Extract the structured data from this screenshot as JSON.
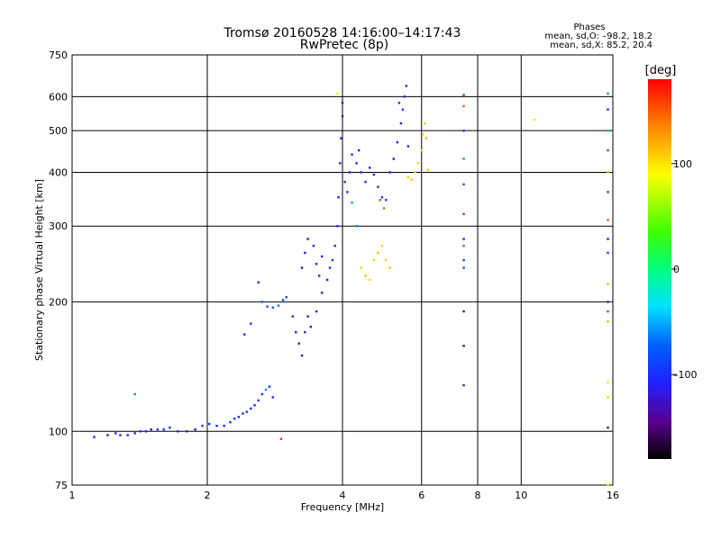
{
  "chart_data": {
    "type": "scatter",
    "title": "Tromsø 20160528 14:16:00–14:17:43",
    "subtitle": "RwPretec (8p)",
    "stats": {
      "heading": "Phases",
      "line_o": "mean, sd,O:  –98.2, 18.2",
      "line_x": "mean, sd,X:   85.2, 20.4"
    },
    "xlabel": "Frequency [MHz]",
    "ylabel": "Stationary phase Virtual Height [km]",
    "x_scale": "log",
    "y_scale": "log",
    "xlim": [
      1,
      16
    ],
    "ylim": [
      75,
      750
    ],
    "xticks": [
      1,
      2,
      4,
      6,
      8,
      10,
      16
    ],
    "xtick_labels": [
      "1",
      "2",
      "4",
      "6",
      "8",
      "10",
      "16"
    ],
    "yticks": [
      75,
      100,
      200,
      300,
      400,
      500,
      600,
      750
    ],
    "ytick_labels": [
      "75",
      "100",
      "200",
      "300",
      "400",
      "500",
      "600",
      "750"
    ],
    "grid": true,
    "colorbar": {
      "label": "[deg]",
      "range": [
        -180,
        180
      ],
      "ticks": [
        -100,
        0,
        100
      ],
      "tick_labels": [
        "–100",
        "0",
        "100"
      ]
    },
    "points": [
      {
        "x": 1.12,
        "y": 97,
        "c": -110
      },
      {
        "x": 1.2,
        "y": 98,
        "c": -115
      },
      {
        "x": 1.25,
        "y": 99,
        "c": -120
      },
      {
        "x": 1.28,
        "y": 98,
        "c": -118
      },
      {
        "x": 1.33,
        "y": 98,
        "c": -112
      },
      {
        "x": 1.38,
        "y": 99,
        "c": -108
      },
      {
        "x": 1.42,
        "y": 100,
        "c": -105
      },
      {
        "x": 1.46,
        "y": 100,
        "c": -110
      },
      {
        "x": 1.5,
        "y": 101,
        "c": -108
      },
      {
        "x": 1.55,
        "y": 101,
        "c": -100
      },
      {
        "x": 1.6,
        "y": 101,
        "c": -95
      },
      {
        "x": 1.65,
        "y": 102,
        "c": -100
      },
      {
        "x": 1.72,
        "y": 100,
        "c": -105
      },
      {
        "x": 1.8,
        "y": 100,
        "c": -110
      },
      {
        "x": 1.88,
        "y": 101,
        "c": -108
      },
      {
        "x": 1.95,
        "y": 103,
        "c": -100
      },
      {
        "x": 2.02,
        "y": 104,
        "c": -95
      },
      {
        "x": 2.1,
        "y": 103,
        "c": -110
      },
      {
        "x": 2.18,
        "y": 103,
        "c": -105
      },
      {
        "x": 2.25,
        "y": 105,
        "c": -100
      },
      {
        "x": 2.3,
        "y": 107,
        "c": -95
      },
      {
        "x": 2.35,
        "y": 108,
        "c": -110
      },
      {
        "x": 2.4,
        "y": 110,
        "c": -100
      },
      {
        "x": 2.45,
        "y": 111,
        "c": -95
      },
      {
        "x": 2.5,
        "y": 113,
        "c": -100
      },
      {
        "x": 2.55,
        "y": 115,
        "c": -105
      },
      {
        "x": 2.6,
        "y": 118,
        "c": -100
      },
      {
        "x": 2.65,
        "y": 122,
        "c": -95
      },
      {
        "x": 2.7,
        "y": 125,
        "c": -60
      },
      {
        "x": 2.75,
        "y": 127,
        "c": -100
      },
      {
        "x": 2.8,
        "y": 120,
        "c": -105
      },
      {
        "x": 1.38,
        "y": 122,
        "c": -60
      },
      {
        "x": 2.92,
        "y": 96,
        "c": 160
      },
      {
        "x": 2.5,
        "y": 178,
        "c": -100
      },
      {
        "x": 2.42,
        "y": 168,
        "c": -110
      },
      {
        "x": 2.6,
        "y": 222,
        "c": -110
      },
      {
        "x": 2.65,
        "y": 200,
        "c": -70
      },
      {
        "x": 2.72,
        "y": 195,
        "c": -80
      },
      {
        "x": 2.8,
        "y": 194,
        "c": -75
      },
      {
        "x": 2.88,
        "y": 196,
        "c": -70
      },
      {
        "x": 2.95,
        "y": 202,
        "c": -80
      },
      {
        "x": 3.0,
        "y": 205,
        "c": -90
      },
      {
        "x": 3.1,
        "y": 185,
        "c": -120
      },
      {
        "x": 3.15,
        "y": 170,
        "c": -125
      },
      {
        "x": 3.2,
        "y": 160,
        "c": -130
      },
      {
        "x": 3.25,
        "y": 150,
        "c": -125
      },
      {
        "x": 3.3,
        "y": 170,
        "c": -120
      },
      {
        "x": 3.35,
        "y": 185,
        "c": -130
      },
      {
        "x": 3.4,
        "y": 175,
        "c": -125
      },
      {
        "x": 3.5,
        "y": 190,
        "c": -120
      },
      {
        "x": 3.6,
        "y": 210,
        "c": -115
      },
      {
        "x": 3.25,
        "y": 240,
        "c": -130
      },
      {
        "x": 3.3,
        "y": 260,
        "c": -125
      },
      {
        "x": 3.35,
        "y": 280,
        "c": -120
      },
      {
        "x": 3.45,
        "y": 270,
        "c": -125
      },
      {
        "x": 3.5,
        "y": 245,
        "c": -130
      },
      {
        "x": 3.55,
        "y": 230,
        "c": -120
      },
      {
        "x": 3.6,
        "y": 255,
        "c": -115
      },
      {
        "x": 3.7,
        "y": 225,
        "c": -110
      },
      {
        "x": 3.75,
        "y": 240,
        "c": -105
      },
      {
        "x": 3.8,
        "y": 250,
        "c": -100
      },
      {
        "x": 3.85,
        "y": 270,
        "c": -110
      },
      {
        "x": 3.9,
        "y": 300,
        "c": -105
      },
      {
        "x": 3.92,
        "y": 350,
        "c": -110
      },
      {
        "x": 3.95,
        "y": 420,
        "c": -115
      },
      {
        "x": 3.97,
        "y": 480,
        "c": -110
      },
      {
        "x": 4.0,
        "y": 540,
        "c": -115
      },
      {
        "x": 4.0,
        "y": 580,
        "c": -120
      },
      {
        "x": 4.05,
        "y": 380,
        "c": -105
      },
      {
        "x": 4.1,
        "y": 360,
        "c": -100
      },
      {
        "x": 4.15,
        "y": 400,
        "c": -110
      },
      {
        "x": 4.2,
        "y": 440,
        "c": -105
      },
      {
        "x": 4.3,
        "y": 420,
        "c": -110
      },
      {
        "x": 4.35,
        "y": 450,
        "c": -115
      },
      {
        "x": 4.4,
        "y": 400,
        "c": -105
      },
      {
        "x": 4.5,
        "y": 380,
        "c": -100
      },
      {
        "x": 4.6,
        "y": 410,
        "c": -110
      },
      {
        "x": 4.7,
        "y": 395,
        "c": -105
      },
      {
        "x": 4.8,
        "y": 370,
        "c": -100
      },
      {
        "x": 4.9,
        "y": 350,
        "c": -95
      },
      {
        "x": 5.0,
        "y": 345,
        "c": -100
      },
      {
        "x": 5.1,
        "y": 400,
        "c": -110
      },
      {
        "x": 5.2,
        "y": 430,
        "c": -115
      },
      {
        "x": 5.3,
        "y": 470,
        "c": -110
      },
      {
        "x": 5.4,
        "y": 520,
        "c": -110
      },
      {
        "x": 5.5,
        "y": 600,
        "c": -115
      },
      {
        "x": 5.55,
        "y": 635,
        "c": -110
      },
      {
        "x": 5.6,
        "y": 460,
        "c": -105
      },
      {
        "x": 5.35,
        "y": 580,
        "c": -100
      },
      {
        "x": 5.45,
        "y": 560,
        "c": -105
      },
      {
        "x": 4.85,
        "y": 345,
        "c": 155
      },
      {
        "x": 4.95,
        "y": 330,
        "c": 150
      },
      {
        "x": 4.4,
        "y": 240,
        "c": 110
      },
      {
        "x": 4.5,
        "y": 230,
        "c": 115
      },
      {
        "x": 4.6,
        "y": 225,
        "c": 105
      },
      {
        "x": 4.7,
        "y": 250,
        "c": 110
      },
      {
        "x": 4.8,
        "y": 260,
        "c": 115
      },
      {
        "x": 4.9,
        "y": 270,
        "c": 105
      },
      {
        "x": 5.0,
        "y": 250,
        "c": 110
      },
      {
        "x": 5.1,
        "y": 240,
        "c": 115
      },
      {
        "x": 5.6,
        "y": 390,
        "c": 110
      },
      {
        "x": 5.7,
        "y": 385,
        "c": 115
      },
      {
        "x": 5.8,
        "y": 400,
        "c": 105
      },
      {
        "x": 5.9,
        "y": 420,
        "c": 110
      },
      {
        "x": 6.0,
        "y": 450,
        "c": 105
      },
      {
        "x": 6.05,
        "y": 490,
        "c": 100
      },
      {
        "x": 6.1,
        "y": 520,
        "c": 110
      },
      {
        "x": 6.15,
        "y": 480,
        "c": 115
      },
      {
        "x": 6.2,
        "y": 405,
        "c": 110
      },
      {
        "x": 3.9,
        "y": 610,
        "c": 100
      },
      {
        "x": 4.2,
        "y": 340,
        "c": -55
      },
      {
        "x": 4.3,
        "y": 300,
        "c": -60
      },
      {
        "x": 7.45,
        "y": 605,
        "c": -75
      },
      {
        "x": 7.45,
        "y": 570,
        "c": 150
      },
      {
        "x": 7.45,
        "y": 500,
        "c": -100
      },
      {
        "x": 7.45,
        "y": 430,
        "c": -60
      },
      {
        "x": 7.45,
        "y": 375,
        "c": -80
      },
      {
        "x": 7.45,
        "y": 320,
        "c": 165
      },
      {
        "x": 7.45,
        "y": 280,
        "c": -110
      },
      {
        "x": 7.45,
        "y": 270,
        "c": -60
      },
      {
        "x": 7.45,
        "y": 250,
        "c": -90
      },
      {
        "x": 7.45,
        "y": 240,
        "c": -70
      },
      {
        "x": 7.45,
        "y": 190,
        "c": -130
      },
      {
        "x": 7.45,
        "y": 158,
        "c": -140
      },
      {
        "x": 7.45,
        "y": 128,
        "c": -135
      },
      {
        "x": 10.7,
        "y": 530,
        "c": 105
      },
      {
        "x": 15.6,
        "y": 610,
        "c": -60
      },
      {
        "x": 15.6,
        "y": 560,
        "c": -100
      },
      {
        "x": 15.6,
        "y": 500,
        "c": -50
      },
      {
        "x": 15.6,
        "y": 450,
        "c": -70
      },
      {
        "x": 15.6,
        "y": 400,
        "c": 110
      },
      {
        "x": 15.6,
        "y": 360,
        "c": -90
      },
      {
        "x": 15.6,
        "y": 310,
        "c": 150
      },
      {
        "x": 15.6,
        "y": 280,
        "c": -110
      },
      {
        "x": 15.6,
        "y": 260,
        "c": -80
      },
      {
        "x": 15.6,
        "y": 220,
        "c": 120
      },
      {
        "x": 15.6,
        "y": 200,
        "c": -120
      },
      {
        "x": 15.6,
        "y": 190,
        "c": 160
      },
      {
        "x": 15.6,
        "y": 180,
        "c": 120
      },
      {
        "x": 15.6,
        "y": 130,
        "c": 100
      },
      {
        "x": 15.6,
        "y": 120,
        "c": 110
      },
      {
        "x": 15.6,
        "y": 102,
        "c": -140
      },
      {
        "x": 15.6,
        "y": 75,
        "c": 100
      }
    ]
  }
}
